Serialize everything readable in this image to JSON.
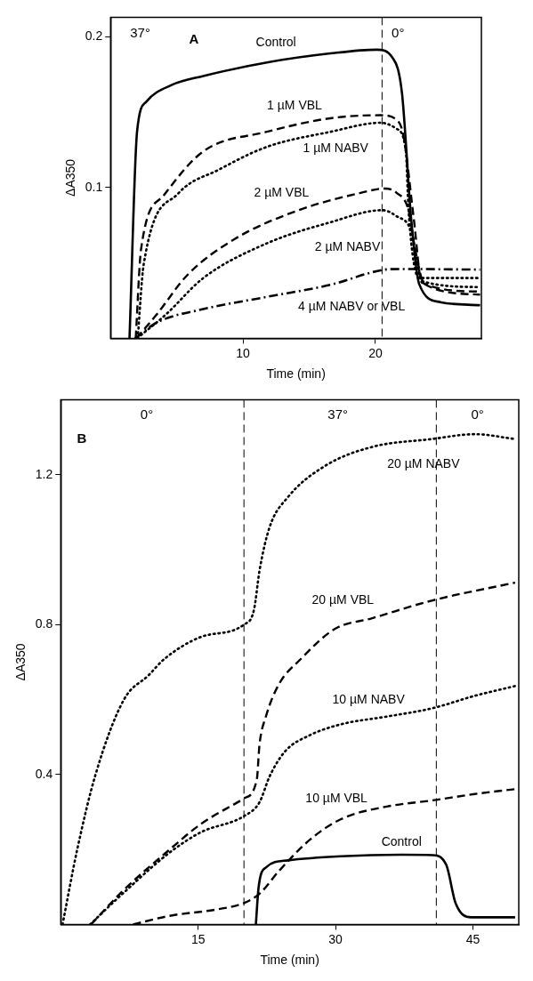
{
  "chart_data": [
    {
      "type": "line",
      "xlabel": "Time (min)",
      "ylabel": "ΔA350",
      "xlim": [
        0,
        28
      ],
      "xticks": [
        10,
        20
      ],
      "ylim": [
        0,
        0.213
      ],
      "yticks": [
        0.1,
        0.2
      ],
      "grid": false,
      "marker": "none",
      "series": [
        {
          "name": "Control",
          "color": "#000000",
          "line_style": "solid",
          "x": [
            1.43,
            2.0,
            2.7,
            4.6,
            7.0,
            11.8,
            16.6,
            20.1,
            21.3,
            22.0,
            22.7,
            23.3,
            24.9,
            27.9
          ],
          "values": [
            0,
            0.137,
            0.157,
            0.168,
            0.174,
            0.183,
            0.189,
            0.1915,
            0.186,
            0.163,
            0.079,
            0.036,
            0.024,
            0.022
          ]
        },
        {
          "name": "1 µM VBL",
          "color": "#000000",
          "line_style": "dashed",
          "x": [
            1.9,
            2.3,
            4.0,
            7.0,
            11.8,
            16.6,
            20.4,
            21.6,
            22.1,
            22.9,
            23.5,
            27.9
          ],
          "values": [
            0,
            0.059,
            0.0947,
            0.124,
            0.137,
            0.146,
            0.148,
            0.145,
            0.135,
            0.079,
            0.037,
            0.031
          ]
        },
        {
          "name": "1 µM NABV",
          "color": "#000000",
          "line_style": "dotted",
          "x": [
            2.05,
            2.5,
            5.1,
            8.2,
            11.8,
            16.6,
            20.4,
            21.6,
            22.3,
            22.5,
            23.3,
            27.9
          ],
          "values": [
            0,
            0.049,
            0.096,
            0.112,
            0.127,
            0.137,
            0.143,
            0.139,
            0.124,
            0.085,
            0.04,
            0.04
          ]
        },
        {
          "name": "2 µM VBL",
          "color": "#000000",
          "line_style": "dashed",
          "x": [
            1.95,
            3.5,
            5.8,
            9.4,
            14.2,
            18.9,
            20.7,
            21.6,
            22.5,
            23.0,
            23.7,
            27.9
          ],
          "values": [
            0,
            0.016,
            0.042,
            0.066,
            0.085,
            0.0965,
            0.0994,
            0.0965,
            0.085,
            0.059,
            0.036,
            0.029
          ]
        },
        {
          "name": "2 µM NABV",
          "color": "#000000",
          "line_style": "dotted",
          "x": [
            2.0,
            4.2,
            7.0,
            11.8,
            16.6,
            20.5,
            21.6,
            22.7,
            23.5,
            27.9
          ],
          "values": [
            0,
            0.016,
            0.04,
            0.063,
            0.077,
            0.085,
            0.081,
            0.071,
            0.038,
            0.034
          ]
        },
        {
          "name": "4 µM NABV or VBL",
          "color": "#000000",
          "line_style": "dashdot",
          "x": [
            1.85,
            3.5,
            7.0,
            11.8,
            16.6,
            20.5,
            21.8,
            27.9
          ],
          "values": [
            0,
            0.0105,
            0.0194,
            0.0275,
            0.0355,
            0.0453,
            0.046,
            0.0456
          ]
        }
      ],
      "ref_lines": [
        {
          "axis": "x",
          "value": 20.5,
          "line_style": "dashed"
        }
      ],
      "annotations": [
        "37°",
        "A",
        "0°"
      ]
    },
    {
      "type": "line",
      "xlabel": "Time (min)",
      "ylabel": "ΔA350",
      "xlim": [
        0,
        50
      ],
      "xticks": [
        15,
        30,
        45
      ],
      "ylim": [
        0,
        1.4
      ],
      "yticks": [
        0.4,
        0.8,
        1.2
      ],
      "grid": false,
      "marker": "none",
      "series": [
        {
          "name": "20 µM NABV",
          "color": "#000000",
          "line_style": "dotted",
          "x": [
            0.2,
            1.8,
            3.8,
            6.9,
            9.6,
            11.3,
            15.3,
            20.0,
            21.1,
            21.7,
            22.8,
            24.8,
            28.9,
            34.0,
            40.5,
            45.2,
            49.6
          ],
          "values": [
            0,
            0.2,
            0.4,
            0.6,
            0.665,
            0.708,
            0.767,
            0.8,
            0.84,
            0.944,
            1.06,
            1.14,
            1.224,
            1.274,
            1.295,
            1.308,
            1.295
          ]
        },
        {
          "name": "20 µM VBL",
          "color": "#000000",
          "line_style": "dashed",
          "x": [
            3.3,
            6.8,
            11.9,
            15.3,
            20.0,
            21.4,
            21.7,
            22.4,
            23.8,
            26.2,
            29.9,
            34.0,
            40.5,
            49.6
          ],
          "values": [
            0,
            0.09,
            0.2,
            0.268,
            0.336,
            0.386,
            0.48,
            0.555,
            0.64,
            0.708,
            0.788,
            0.817,
            0.864,
            0.912
          ]
        },
        {
          "name": "10 µM NABV",
          "color": "#000000",
          "line_style": "dotted",
          "x": [
            3.2,
            6.8,
            11.9,
            15.3,
            20.0,
            21.7,
            22.8,
            24.5,
            27.2,
            30.6,
            35.7,
            40.6,
            45.2,
            49.6
          ],
          "values": [
            0,
            0.083,
            0.192,
            0.246,
            0.289,
            0.326,
            0.395,
            0.462,
            0.505,
            0.534,
            0.555,
            0.577,
            0.61,
            0.636
          ]
        },
        {
          "name": "10 µM VBL",
          "color": "#000000",
          "line_style": "dashed",
          "x": [
            7.9,
            11.9,
            17.0,
            20.0,
            21.7,
            23.8,
            27.2,
            30.6,
            35.7,
            40.6,
            45.2,
            49.6
          ],
          "values": [
            0,
            0.023,
            0.04,
            0.057,
            0.082,
            0.142,
            0.226,
            0.281,
            0.315,
            0.331,
            0.348,
            0.361
          ]
        },
        {
          "name": "Control",
          "color": "#000000",
          "line_style": "solid",
          "x": [
            21.3,
            21.6,
            22.4,
            24.8,
            30.6,
            37.2,
            40.6,
            42.1,
            43.1,
            44.8,
            49.6
          ],
          "values": [
            0,
            0.099,
            0.152,
            0.171,
            0.182,
            0.186,
            0.185,
            0.158,
            0.057,
            0.019,
            0.019
          ]
        }
      ],
      "ref_lines": [
        {
          "axis": "x",
          "value": 20,
          "line_style": "dashed"
        },
        {
          "axis": "x",
          "value": 41,
          "line_style": "dashed"
        }
      ],
      "annotations": [
        "0°",
        "37°",
        "0°",
        "B"
      ]
    }
  ]
}
